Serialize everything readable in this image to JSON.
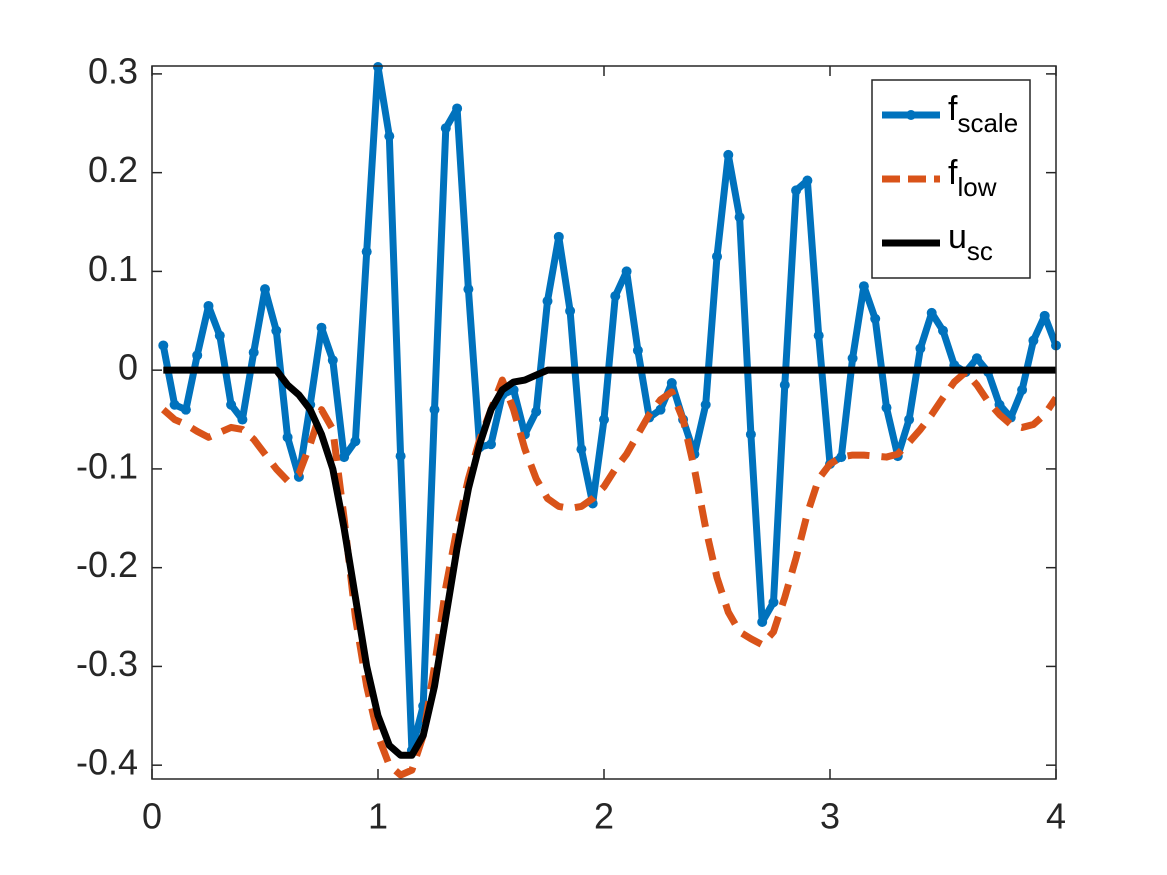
{
  "chart_data": {
    "type": "line",
    "x": [
      0.05,
      0.1,
      0.15,
      0.2,
      0.25,
      0.3,
      0.35,
      0.4,
      0.45,
      0.5,
      0.55,
      0.6,
      0.65,
      0.7,
      0.75,
      0.8,
      0.85,
      0.9,
      0.95,
      1.0,
      1.05,
      1.1,
      1.15,
      1.2,
      1.25,
      1.3,
      1.35,
      1.4,
      1.45,
      1.5,
      1.55,
      1.6,
      1.65,
      1.7,
      1.75,
      1.8,
      1.85,
      1.9,
      1.95,
      2.0,
      2.05,
      2.1,
      2.15,
      2.2,
      2.25,
      2.3,
      2.35,
      2.4,
      2.45,
      2.5,
      2.55,
      2.6,
      2.65,
      2.7,
      2.75,
      2.8,
      2.85,
      2.9,
      2.95,
      3.0,
      3.05,
      3.1,
      3.15,
      3.2,
      3.25,
      3.3,
      3.35,
      3.4,
      3.45,
      3.5,
      3.55,
      3.6,
      3.65,
      3.7,
      3.75,
      3.8,
      3.85,
      3.9,
      3.95,
      4.0
    ],
    "series": [
      {
        "name": "f",
        "subscript": "scale",
        "color": "#0072bd",
        "style": "solid",
        "marker": true,
        "values": [
          0.025,
          -0.035,
          -0.04,
          0.015,
          0.065,
          0.035,
          -0.035,
          -0.05,
          0.018,
          0.082,
          0.04,
          -0.068,
          -0.108,
          -0.035,
          0.043,
          0.01,
          -0.088,
          -0.072,
          0.12,
          0.307,
          0.237,
          -0.087,
          -0.385,
          -0.34,
          -0.04,
          0.245,
          0.265,
          0.082,
          -0.078,
          -0.075,
          -0.025,
          -0.02,
          -0.065,
          -0.042,
          0.07,
          0.135,
          0.06,
          -0.08,
          -0.135,
          -0.05,
          0.075,
          0.1,
          0.02,
          -0.048,
          -0.04,
          -0.013,
          -0.05,
          -0.085,
          -0.035,
          0.115,
          0.218,
          0.155,
          -0.065,
          -0.255,
          -0.235,
          -0.015,
          0.182,
          0.192,
          0.035,
          -0.095,
          -0.088,
          0.012,
          0.085,
          0.052,
          -0.038,
          -0.087,
          -0.05,
          0.022,
          0.058,
          0.04,
          0.005,
          -0.002,
          0.012,
          -0.002,
          -0.035,
          -0.048,
          -0.02,
          0.03,
          0.055,
          0.025
        ]
      },
      {
        "name": "f",
        "subscript": "low",
        "color": "#d95319",
        "style": "dashed",
        "marker": false,
        "values": [
          -0.04,
          -0.05,
          -0.055,
          -0.062,
          -0.068,
          -0.063,
          -0.058,
          -0.06,
          -0.07,
          -0.085,
          -0.1,
          -0.112,
          -0.105,
          -0.075,
          -0.04,
          -0.06,
          -0.15,
          -0.25,
          -0.32,
          -0.37,
          -0.4,
          -0.41,
          -0.405,
          -0.37,
          -0.3,
          -0.22,
          -0.16,
          -0.11,
          -0.07,
          -0.04,
          -0.01,
          -0.04,
          -0.08,
          -0.11,
          -0.13,
          -0.138,
          -0.14,
          -0.138,
          -0.13,
          -0.118,
          -0.1,
          -0.085,
          -0.065,
          -0.045,
          -0.03,
          -0.022,
          -0.05,
          -0.1,
          -0.16,
          -0.21,
          -0.245,
          -0.265,
          -0.272,
          -0.278,
          -0.265,
          -0.23,
          -0.19,
          -0.145,
          -0.11,
          -0.095,
          -0.088,
          -0.086,
          -0.086,
          -0.087,
          -0.088,
          -0.085,
          -0.073,
          -0.06,
          -0.045,
          -0.028,
          -0.012,
          -0.002,
          -0.015,
          -0.032,
          -0.045,
          -0.055,
          -0.058,
          -0.055,
          -0.045,
          -0.028
        ]
      },
      {
        "name": "u",
        "subscript": "sc",
        "color": "#000000",
        "style": "solid",
        "marker": false,
        "values": [
          0,
          0,
          0,
          0,
          0,
          0,
          0,
          0,
          0,
          0,
          0,
          -0.015,
          -0.025,
          -0.04,
          -0.065,
          -0.1,
          -0.16,
          -0.23,
          -0.3,
          -0.35,
          -0.38,
          -0.39,
          -0.39,
          -0.37,
          -0.32,
          -0.25,
          -0.18,
          -0.12,
          -0.075,
          -0.04,
          -0.02,
          -0.012,
          -0.01,
          -0.005,
          0,
          0,
          0,
          0,
          0,
          0,
          0,
          0,
          0,
          0,
          0,
          0,
          0,
          0,
          0,
          0,
          0,
          0,
          0,
          0,
          0,
          0,
          0,
          0,
          0,
          0,
          0,
          0,
          0,
          0,
          0,
          0,
          0,
          0,
          0,
          0,
          0,
          0,
          0,
          0,
          0,
          0,
          0,
          0,
          0,
          0
        ]
      }
    ],
    "xlim": [
      0,
      4
    ],
    "xticks": [
      0,
      1,
      2,
      3,
      4
    ],
    "ylim": [
      -0.414,
      0.308
    ],
    "yticks": [
      -0.4,
      -0.3,
      -0.2,
      -0.1,
      0,
      0.1,
      0.2,
      0.3
    ],
    "grid": false,
    "legend": "northeast"
  }
}
